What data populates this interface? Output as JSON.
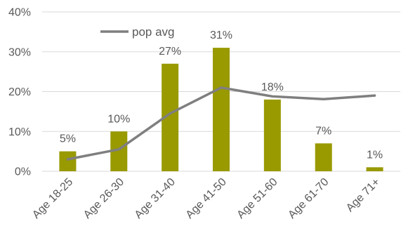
{
  "chart_data": {
    "type": "bar",
    "categories": [
      "Age 18-25",
      "Age 26-30",
      "Age 31-40",
      "Age 41-50",
      "Age 51-60",
      "Age 61-70",
      "Age 71+"
    ],
    "series": [
      {
        "type": "bar",
        "values": [
          0.05,
          0.1,
          0.27,
          0.31,
          0.18,
          0.07,
          0.01
        ],
        "labels": [
          "5%",
          "10%",
          "27%",
          "31%",
          "18%",
          "7%",
          "1%"
        ],
        "color": "#999900"
      },
      {
        "type": "line",
        "name": "pop avg",
        "values": [
          0.03,
          0.055,
          0.145,
          0.21,
          0.188,
          0.181,
          0.19
        ],
        "color": "#7f7f7f"
      }
    ],
    "y_ticks": [
      "0%",
      "10%",
      "20%",
      "30%",
      "40%"
    ],
    "ylim": [
      0,
      0.4
    ],
    "grid": true,
    "legend_position": "top-center",
    "title": "",
    "xlabel": "",
    "ylabel": ""
  }
}
